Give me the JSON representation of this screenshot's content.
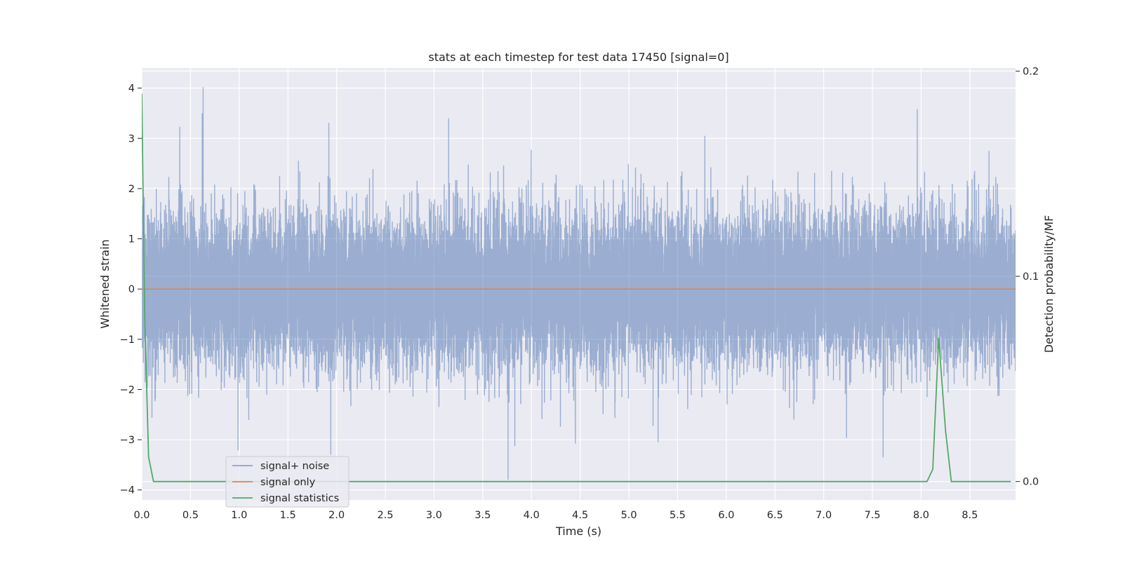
{
  "chart_data": {
    "type": "line",
    "title": "stats at each timestep for test data 17450 [signal=0]",
    "xlabel": "Time (s)",
    "ylabel": "Whitened strain",
    "y2label": "Detection probability/MF",
    "xlim": [
      0.0,
      8.97
    ],
    "ylim": [
      -4.2,
      4.4
    ],
    "y2lim": [
      -0.009,
      0.2015
    ],
    "xticks": [
      "0.0",
      "0.5",
      "1.0",
      "1.5",
      "2.0",
      "2.5",
      "3.0",
      "3.5",
      "4.0",
      "4.5",
      "5.0",
      "5.5",
      "6.0",
      "6.5",
      "7.0",
      "7.5",
      "8.0",
      "8.5"
    ],
    "yticks": [
      "4",
      "3",
      "2",
      "1",
      "0",
      "−1",
      "−2",
      "−3",
      "−4"
    ],
    "y2ticks": [
      "0.2",
      "0.1",
      "0.0"
    ],
    "grid": true,
    "legend_position": "lower-left",
    "colors": {
      "noise": "#4c72b0",
      "signal": "#dd8452",
      "stats": "#55a868",
      "background": "#eaeaf2",
      "grid": "#ffffff"
    },
    "series": [
      {
        "name": "signal+ noise",
        "axis": "left",
        "sample_rate_hz": 2048,
        "description_values": "dense whitened noise, roughly within ±1.5 with spikes",
        "extrema": [
          {
            "x": 0.63,
            "y": 4.02
          },
          {
            "x": 0.62,
            "y": 3.5
          },
          {
            "x": 0.39,
            "y": 3.23
          },
          {
            "x": 3.15,
            "y": 3.4
          },
          {
            "x": 7.96,
            "y": 3.58
          },
          {
            "x": 5.78,
            "y": 3.05
          },
          {
            "x": 3.76,
            "y": -3.8
          },
          {
            "x": 1.94,
            "y": -3.3
          },
          {
            "x": 7.61,
            "y": -3.35
          },
          {
            "x": 4.45,
            "y": -3.08
          },
          {
            "x": 5.3,
            "y": -3.05
          }
        ]
      },
      {
        "name": "signal only",
        "axis": "left",
        "x": [
          0.0,
          8.97
        ],
        "values": [
          0.0,
          0.0
        ]
      },
      {
        "name": "signal statistics",
        "axis": "right",
        "x": [
          0.0,
          0.03,
          0.07,
          0.12,
          0.19,
          8.06,
          8.12,
          8.18,
          8.25,
          8.31,
          8.92
        ],
        "values": [
          0.189,
          0.08,
          0.012,
          0.0,
          0.0,
          0.0,
          0.006,
          0.07,
          0.025,
          0.0,
          0.0
        ]
      }
    ]
  }
}
